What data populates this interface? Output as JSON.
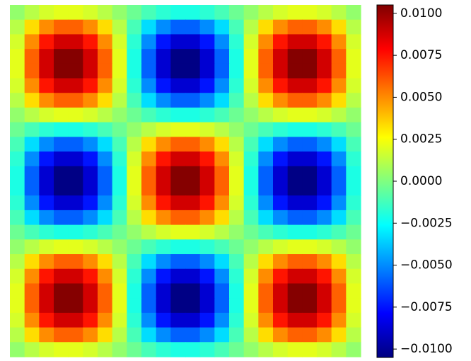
{
  "chart_data": {
    "type": "heatmap",
    "colormap": "jet",
    "clim": [
      -0.0105,
      0.0105
    ],
    "cticks": [
      {
        "value": 0.01,
        "label": "0.0100"
      },
      {
        "value": 0.0075,
        "label": "0.0075"
      },
      {
        "value": 0.005,
        "label": "0.0050"
      },
      {
        "value": 0.0025,
        "label": "0.0025"
      },
      {
        "value": 0,
        "label": "0.0000"
      },
      {
        "value": -0.0025,
        "label": "−0.0025"
      },
      {
        "value": -0.005,
        "label": "−0.0050"
      },
      {
        "value": -0.0075,
        "label": "−0.0075"
      },
      {
        "value": -0.01,
        "label": "−0.0100"
      }
    ],
    "z": [
      [
        0.00041,
        0.00117,
        0.00175,
        0.00207,
        0.00207,
        0.00175,
        0.00117,
        0.00041,
        -0.00041,
        -0.00117,
        -0.00175,
        -0.00207,
        -0.00207,
        -0.00175,
        -0.00117,
        -0.00041,
        0.00041,
        0.00117,
        0.00175,
        0.00207,
        0.00207,
        0.00175,
        0.00117,
        0.00041
      ],
      [
        0.00117,
        0.00333,
        0.00499,
        0.00588,
        0.00588,
        0.00499,
        0.00333,
        0.00117,
        -0.00117,
        -0.00333,
        -0.00499,
        -0.00588,
        -0.00588,
        -0.00499,
        -0.00333,
        -0.00117,
        0.00117,
        0.00333,
        0.00499,
        0.00588,
        0.00588,
        0.00499,
        0.00333,
        0.00117
      ],
      [
        0.00175,
        0.00499,
        0.00747,
        0.00881,
        0.00881,
        0.00747,
        0.00499,
        0.00175,
        -0.00175,
        -0.00499,
        -0.00747,
        -0.00881,
        -0.00881,
        -0.00747,
        -0.00499,
        -0.00175,
        0.00175,
        0.00499,
        0.00747,
        0.00881,
        0.00881,
        0.00747,
        0.00499,
        0.00175
      ],
      [
        0.00207,
        0.00588,
        0.00881,
        0.01039,
        0.01039,
        0.00881,
        0.00588,
        0.00207,
        -0.00207,
        -0.00588,
        -0.00881,
        -0.01039,
        -0.01039,
        -0.00881,
        -0.00588,
        -0.00207,
        0.00207,
        0.00588,
        0.00881,
        0.01039,
        0.01039,
        0.00881,
        0.00588,
        0.00207
      ],
      [
        0.00207,
        0.00588,
        0.00881,
        0.01039,
        0.01039,
        0.00881,
        0.00588,
        0.00207,
        -0.00207,
        -0.00588,
        -0.00881,
        -0.01039,
        -0.01039,
        -0.00881,
        -0.00588,
        -0.00207,
        0.00207,
        0.00588,
        0.00881,
        0.01039,
        0.01039,
        0.00881,
        0.00588,
        0.00207
      ],
      [
        0.00175,
        0.00499,
        0.00747,
        0.00881,
        0.00881,
        0.00747,
        0.00499,
        0.00175,
        -0.00175,
        -0.00499,
        -0.00747,
        -0.00881,
        -0.00881,
        -0.00747,
        -0.00499,
        -0.00175,
        0.00175,
        0.00499,
        0.00747,
        0.00881,
        0.00881,
        0.00747,
        0.00499,
        0.00175
      ],
      [
        0.00117,
        0.00333,
        0.00499,
        0.00588,
        0.00588,
        0.00499,
        0.00333,
        0.00117,
        -0.00117,
        -0.00333,
        -0.00499,
        -0.00588,
        -0.00588,
        -0.00499,
        -0.00333,
        -0.00117,
        0.00117,
        0.00333,
        0.00499,
        0.00588,
        0.00588,
        0.00499,
        0.00333,
        0.00117
      ],
      [
        0.00041,
        0.00117,
        0.00175,
        0.00207,
        0.00207,
        0.00175,
        0.00117,
        0.00041,
        -0.00041,
        -0.00117,
        -0.00175,
        -0.00207,
        -0.00207,
        -0.00175,
        -0.00117,
        -0.00041,
        0.00041,
        0.00117,
        0.00175,
        0.00207,
        0.00207,
        0.00175,
        0.00117,
        0.00041
      ],
      [
        -0.00041,
        -0.00117,
        -0.00175,
        -0.00207,
        -0.00207,
        -0.00175,
        -0.00117,
        -0.00041,
        0.00041,
        0.00117,
        0.00175,
        0.00207,
        0.00207,
        0.00175,
        0.00117,
        0.00041,
        -0.00041,
        -0.00117,
        -0.00175,
        -0.00207,
        -0.00207,
        -0.00175,
        -0.00117,
        -0.00041
      ],
      [
        -0.00117,
        -0.00333,
        -0.00499,
        -0.00588,
        -0.00588,
        -0.00499,
        -0.00333,
        -0.00117,
        0.00117,
        0.00333,
        0.00499,
        0.00588,
        0.00588,
        0.00499,
        0.00333,
        0.00117,
        -0.00117,
        -0.00333,
        -0.00499,
        -0.00588,
        -0.00588,
        -0.00499,
        -0.00333,
        -0.00117
      ],
      [
        -0.00175,
        -0.00499,
        -0.00747,
        -0.00881,
        -0.00881,
        -0.00747,
        -0.00499,
        -0.00175,
        0.00175,
        0.00499,
        0.00747,
        0.00881,
        0.00881,
        0.00747,
        0.00499,
        0.00175,
        -0.00175,
        -0.00499,
        -0.00747,
        -0.00881,
        -0.00881,
        -0.00747,
        -0.00499,
        -0.00175
      ],
      [
        -0.00207,
        -0.00588,
        -0.00881,
        -0.01039,
        -0.01039,
        -0.00881,
        -0.00588,
        -0.00207,
        0.00207,
        0.00588,
        0.00881,
        0.01039,
        0.01039,
        0.00881,
        0.00588,
        0.00207,
        -0.00207,
        -0.00588,
        -0.00881,
        -0.01039,
        -0.01039,
        -0.00881,
        -0.00588,
        -0.00207
      ],
      [
        -0.00207,
        -0.00588,
        -0.00881,
        -0.01039,
        -0.01039,
        -0.00881,
        -0.00588,
        -0.00207,
        0.00207,
        0.00588,
        0.00881,
        0.01039,
        0.01039,
        0.00881,
        0.00588,
        0.00207,
        -0.00207,
        -0.00588,
        -0.00881,
        -0.01039,
        -0.01039,
        -0.00881,
        -0.00588,
        -0.00207
      ],
      [
        -0.00175,
        -0.00499,
        -0.00747,
        -0.00881,
        -0.00881,
        -0.00747,
        -0.00499,
        -0.00175,
        0.00175,
        0.00499,
        0.00747,
        0.00881,
        0.00881,
        0.00747,
        0.00499,
        0.00175,
        -0.00175,
        -0.00499,
        -0.00747,
        -0.00881,
        -0.00881,
        -0.00747,
        -0.00499,
        -0.00175
      ],
      [
        -0.00117,
        -0.00333,
        -0.00499,
        -0.00588,
        -0.00588,
        -0.00499,
        -0.00333,
        -0.00117,
        0.00117,
        0.00333,
        0.00499,
        0.00588,
        0.00588,
        0.00499,
        0.00333,
        0.00117,
        -0.00117,
        -0.00333,
        -0.00499,
        -0.00588,
        -0.00588,
        -0.00499,
        -0.00333,
        -0.00117
      ],
      [
        -0.00041,
        -0.00117,
        -0.00175,
        -0.00207,
        -0.00207,
        -0.00175,
        -0.00117,
        -0.00041,
        0.00041,
        0.00117,
        0.00175,
        0.00207,
        0.00207,
        0.00175,
        0.00117,
        0.00041,
        -0.00041,
        -0.00117,
        -0.00175,
        -0.00207,
        -0.00207,
        -0.00175,
        -0.00117,
        -0.00041
      ],
      [
        0.00041,
        0.00117,
        0.00175,
        0.00207,
        0.00207,
        0.00175,
        0.00117,
        0.00041,
        -0.00041,
        -0.00117,
        -0.00175,
        -0.00207,
        -0.00207,
        -0.00175,
        -0.00117,
        -0.00041,
        0.00041,
        0.00117,
        0.00175,
        0.00207,
        0.00207,
        0.00175,
        0.00117,
        0.00041
      ],
      [
        0.00117,
        0.00333,
        0.00499,
        0.00588,
        0.00588,
        0.00499,
        0.00333,
        0.00117,
        -0.00117,
        -0.00333,
        -0.00499,
        -0.00588,
        -0.00588,
        -0.00499,
        -0.00333,
        -0.00117,
        0.00117,
        0.00333,
        0.00499,
        0.00588,
        0.00588,
        0.00499,
        0.00333,
        0.00117
      ],
      [
        0.00175,
        0.00499,
        0.00747,
        0.00881,
        0.00881,
        0.00747,
        0.00499,
        0.00175,
        -0.00175,
        -0.00499,
        -0.00747,
        -0.00881,
        -0.00881,
        -0.00747,
        -0.00499,
        -0.00175,
        0.00175,
        0.00499,
        0.00747,
        0.00881,
        0.00881,
        0.00747,
        0.00499,
        0.00175
      ],
      [
        0.00207,
        0.00588,
        0.00881,
        0.01039,
        0.01039,
        0.00881,
        0.00588,
        0.00207,
        -0.00207,
        -0.00588,
        -0.00881,
        -0.01039,
        -0.01039,
        -0.00881,
        -0.00588,
        -0.00207,
        0.00207,
        0.00588,
        0.00881,
        0.01039,
        0.01039,
        0.00881,
        0.00588,
        0.00207
      ],
      [
        0.00207,
        0.00588,
        0.00881,
        0.01039,
        0.01039,
        0.00881,
        0.00588,
        0.00207,
        -0.00207,
        -0.00588,
        -0.00881,
        -0.01039,
        -0.01039,
        -0.00881,
        -0.00588,
        -0.00207,
        0.00207,
        0.00588,
        0.00881,
        0.01039,
        0.01039,
        0.00881,
        0.00588,
        0.00207
      ],
      [
        0.00175,
        0.00499,
        0.00747,
        0.00881,
        0.00881,
        0.00747,
        0.00499,
        0.00175,
        -0.00175,
        -0.00499,
        -0.00747,
        -0.00881,
        -0.00881,
        -0.00747,
        -0.00499,
        -0.00175,
        0.00175,
        0.00499,
        0.00747,
        0.00881,
        0.00881,
        0.00747,
        0.00499,
        0.00175
      ],
      [
        0.00117,
        0.00333,
        0.00499,
        0.00588,
        0.00588,
        0.00499,
        0.00333,
        0.00117,
        -0.00117,
        -0.00333,
        -0.00499,
        -0.00588,
        -0.00588,
        -0.00499,
        -0.00333,
        -0.00117,
        0.00117,
        0.00333,
        0.00499,
        0.00588,
        0.00588,
        0.00499,
        0.00333,
        0.00117
      ],
      [
        0.00041,
        0.00117,
        0.00175,
        0.00207,
        0.00207,
        0.00175,
        0.00117,
        0.00041,
        -0.00041,
        -0.00117,
        -0.00175,
        -0.00207,
        -0.00207,
        -0.00175,
        -0.00117,
        -0.00041,
        0.00041,
        0.00117,
        0.00175,
        0.00207,
        0.00207,
        0.00175,
        0.00117,
        0.00041
      ]
    ]
  }
}
